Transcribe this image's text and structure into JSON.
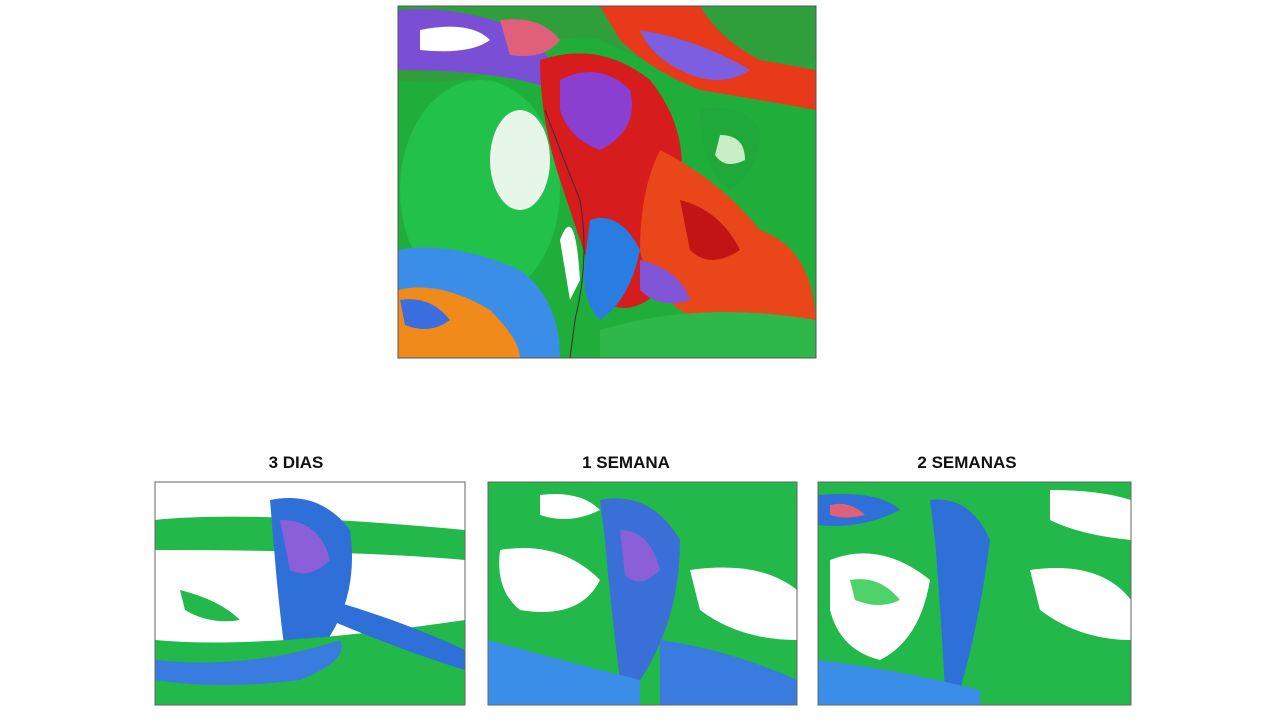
{
  "panels": [
    {
      "label": "3 DIAS"
    },
    {
      "label": "1 SEMANA"
    },
    {
      "label": "2 SEMANAS"
    }
  ]
}
